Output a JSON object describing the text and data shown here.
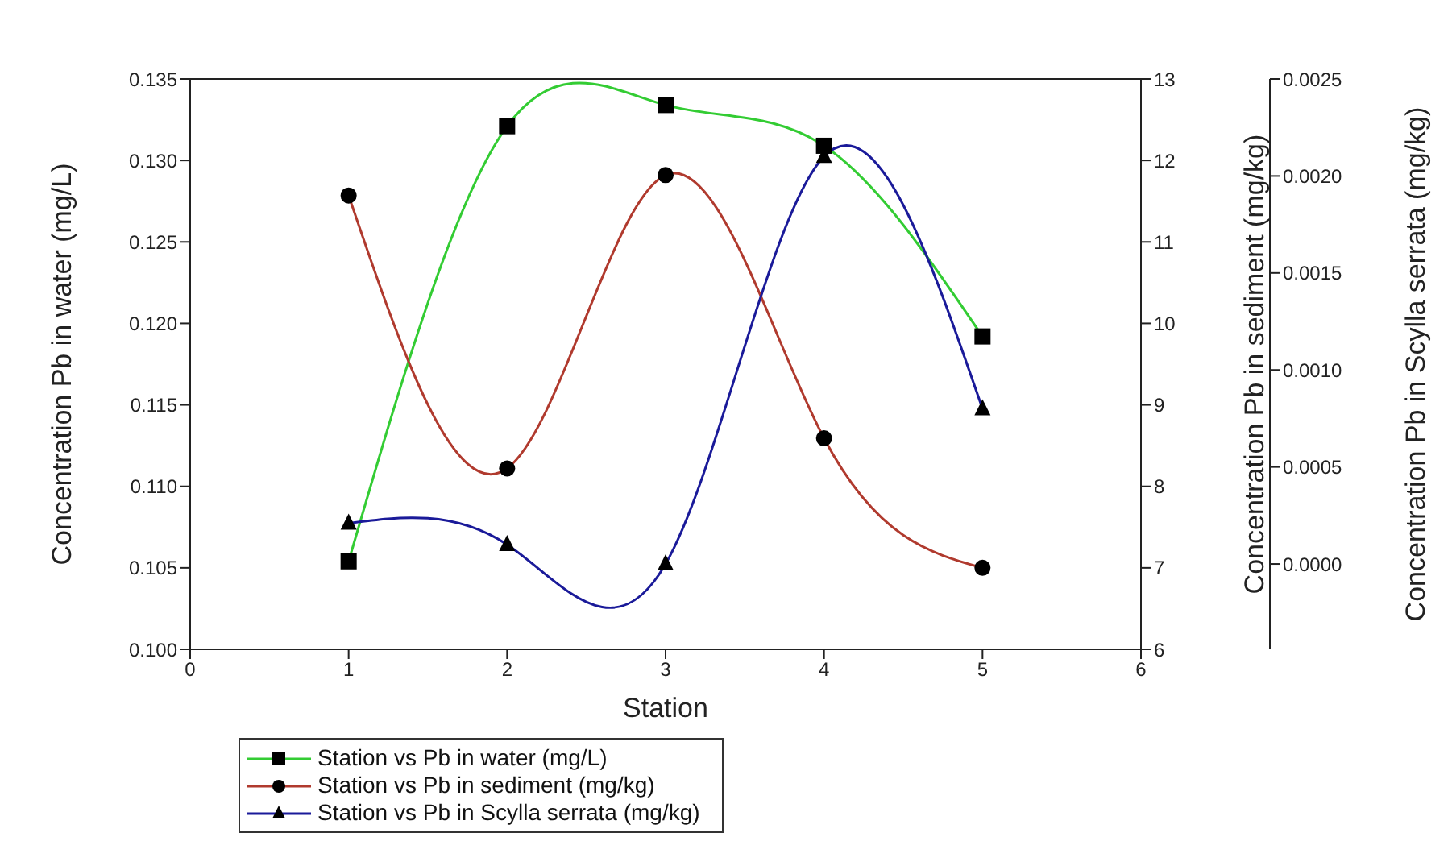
{
  "chart_data": {
    "type": "line",
    "xlabel": "Station",
    "ylabel": "Concentration Pb in water (mg/L)",
    "y2label": "Concentration Pb in sediment (mg/kg)",
    "y3label": "Concentration Pb in Scylla serrata (mg/kg)",
    "x": [
      1,
      2,
      3,
      4,
      5
    ],
    "xlim": [
      0,
      6
    ],
    "xticks": [
      0,
      1,
      2,
      3,
      4,
      5,
      6
    ],
    "ylim": [
      0.1,
      0.135
    ],
    "yticks": [
      {
        "value": 0.1,
        "label": "0.100"
      },
      {
        "value": 0.105,
        "label": "0.105"
      },
      {
        "value": 0.11,
        "label": "0.110"
      },
      {
        "value": 0.115,
        "label": "0.115"
      },
      {
        "value": 0.12,
        "label": "0.120"
      },
      {
        "value": 0.125,
        "label": "0.125"
      },
      {
        "value": 0.13,
        "label": "0.130"
      },
      {
        "value": 0.135,
        "label": "0.135"
      }
    ],
    "y2lim": [
      6,
      13
    ],
    "y2ticks": [
      6,
      7,
      8,
      9,
      10,
      11,
      12,
      13
    ],
    "y3lim": [
      -0.00044,
      0.0025
    ],
    "y3ticks": [
      {
        "value": 0,
        "label": "0.0000"
      },
      {
        "value": 0.0005,
        "label": "0.0005"
      },
      {
        "value": 0.001,
        "label": "0.0010"
      },
      {
        "value": 0.0015,
        "label": "0.0015"
      },
      {
        "value": 0.002,
        "label": "0.0020"
      },
      {
        "value": 0.0025,
        "label": "0.0025"
      }
    ],
    "series": [
      {
        "name": "Station vs Pb in water (mg/L)",
        "color": "#33cc33",
        "marker": "square",
        "values": [
          0.1054,
          0.1321,
          0.1334,
          0.1309,
          0.1192
        ]
      },
      {
        "name": "Station vs Pb in sediment (mg/kg)",
        "color": "#b03a2e",
        "marker": "circle",
        "axis": "y2",
        "values": [
          11.57,
          8.22,
          11.82,
          8.59,
          7.0
        ]
      },
      {
        "name": "Station vs Pb in Scylla serrata (mg/kg)",
        "color": "#1a1a99",
        "marker": "triangle",
        "axis": "y3",
        "values": [
          0.00021,
          0.0001,
          0.0,
          0.0021,
          0.0008
        ]
      }
    ],
    "legend": "bottom left",
    "line_style": "solid"
  }
}
